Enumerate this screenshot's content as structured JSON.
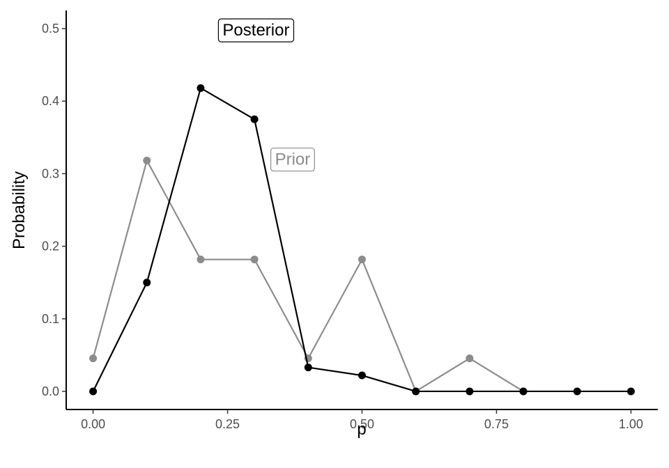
{
  "chart_data": {
    "type": "line",
    "xlabel": "p",
    "ylabel": "Probability",
    "x": [
      0.0,
      0.1,
      0.2,
      0.3,
      0.4,
      0.5,
      0.6,
      0.7,
      0.8,
      0.9,
      1.0
    ],
    "xlim": [
      -0.05,
      1.05
    ],
    "ylim": [
      -0.025,
      0.525
    ],
    "x_ticks": [
      0.0,
      0.25,
      0.5,
      0.75,
      1.0
    ],
    "x_tick_labels": [
      "0.00",
      "0.25",
      "0.50",
      "0.75",
      "1.00"
    ],
    "y_ticks": [
      0.0,
      0.1,
      0.2,
      0.3,
      0.4,
      0.5
    ],
    "y_tick_labels": [
      "0.0",
      "0.1",
      "0.2",
      "0.3",
      "0.4",
      "0.5"
    ],
    "grid": false,
    "series": [
      {
        "id": "prior",
        "color": "#8c8c8c",
        "values": [
          0.0455,
          0.3182,
          0.1818,
          0.1818,
          0.0455,
          0.1818,
          0.0,
          0.0455,
          0.0,
          null,
          null
        ]
      },
      {
        "id": "posterior",
        "color": "#000000",
        "values": [
          0.0,
          0.15,
          0.418,
          0.375,
          0.033,
          0.022,
          0.0,
          0.0,
          0.0,
          0.0,
          0.0
        ]
      }
    ],
    "annotations": [
      {
        "text": "Posterior",
        "series": "posterior",
        "x": 0.303,
        "y": 0.498,
        "color": "#000000"
      },
      {
        "text": "Prior",
        "series": "prior",
        "x": 0.371,
        "y": 0.32,
        "color": "#8c8c8c"
      }
    ]
  }
}
